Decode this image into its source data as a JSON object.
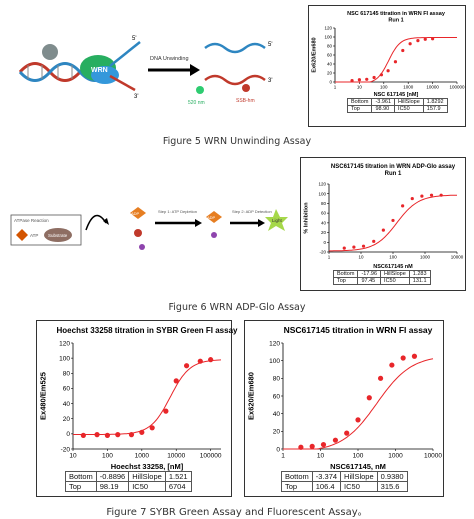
{
  "fig5": {
    "caption": "Figure 5 WRN Unwinding Assay",
    "diagram": {
      "label_wrn": "WRN",
      "label_arrow": "DNA Unwinding",
      "label_520": "520 nm",
      "label_ssb": "SSB-hm",
      "label_5a": "5'",
      "label_3a": "3'",
      "label_5b": "5'",
      "label_3b": "3'",
      "label_3c": "3'"
    },
    "chart_data": {
      "type": "scatter",
      "title": "NSC 617145 titration in WRN FI assay",
      "subtitle": "Run 1",
      "xlabel": "NSC 617145 [nM]",
      "ylabel": "Ex620/Em680",
      "x_ticks": [
        "1",
        "10",
        "100",
        "1000",
        "10000",
        "100000"
      ],
      "y_ticks": [
        "0",
        "20",
        "40",
        "60",
        "80",
        "100",
        "120"
      ],
      "xlim": [
        1,
        100000
      ],
      "ylim": [
        0,
        120
      ],
      "xscale": "log",
      "x": [
        5,
        10,
        20,
        40,
        80,
        150,
        300,
        600,
        1200,
        2500,
        5000,
        10000
      ],
      "y": [
        3,
        5,
        6,
        10,
        16,
        25,
        45,
        70,
        85,
        92,
        95,
        96
      ],
      "fit": {
        "bottom": -3.961,
        "top": 98.9,
        "ic50": 157.9,
        "hill": 1.8292
      },
      "color": "#e8262a"
    },
    "stats": [
      [
        "Bottom",
        "-3.961",
        "HillSlope",
        "1.8292"
      ],
      [
        "Top",
        "98.90",
        "IC50",
        "157.9"
      ]
    ]
  },
  "fig6": {
    "caption": "Figure 6 WRN ADP-Glo Assay",
    "diagram": {
      "label_box": "ATPase Reaction",
      "label_atp": "ATP",
      "label_sub": "Substrate",
      "label_adp1": "ADP",
      "label_step1": "Step 1: ATP Depletion",
      "label_step2": "Step 2: ADP Detection",
      "label_adp2": "ADP",
      "label_light": "Light"
    },
    "chart_data": {
      "type": "scatter",
      "title": "NSC617145 titration in WRN ADP-Glo assay",
      "subtitle": "Run 1",
      "xlabel": "NSC617145 nM",
      "ylabel": "% Inhibition",
      "x_ticks": [
        "1",
        "10",
        "100",
        "1000",
        "10000"
      ],
      "y_ticks": [
        "-20",
        "0",
        "20",
        "40",
        "60",
        "80",
        "100",
        "120"
      ],
      "xlim": [
        1,
        10000
      ],
      "ylim": [
        -20,
        120
      ],
      "xscale": "log",
      "x": [
        3,
        6,
        12,
        25,
        50,
        100,
        200,
        400,
        800,
        1600,
        3200
      ],
      "y": [
        -12,
        -10,
        -8,
        2,
        25,
        45,
        75,
        90,
        95,
        97,
        97
      ],
      "fit": {
        "bottom": -17.96,
        "top": 97.45,
        "ic50": 131.1,
        "hill": 1.283
      },
      "color": "#e8262a"
    },
    "stats": [
      [
        "Bottom",
        "-17.96",
        "HillSlope",
        "1.283"
      ],
      [
        "Top",
        "97.45",
        "IC50",
        "131.1"
      ]
    ]
  },
  "fig7": {
    "caption": "Figure 7 SYBR Green Assay and Fluorescent Assay。",
    "left": {
      "chart_data": {
        "type": "scatter",
        "title": "Hoechst 33258 titration in SYBR Green FI assay",
        "xlabel": "Hoechst 33258, [nM]",
        "ylabel": "Ex480/Em525",
        "x_ticks": [
          "10",
          "100",
          "1000",
          "10000",
          "100000"
        ],
        "y_ticks": [
          "-20",
          "0",
          "20",
          "40",
          "60",
          "80",
          "100",
          "120"
        ],
        "xlim": [
          10,
          200000
        ],
        "ylim": [
          -20,
          120
        ],
        "xscale": "log",
        "x": [
          20,
          50,
          100,
          200,
          500,
          1000,
          2000,
          5000,
          10000,
          20000,
          50000,
          100000
        ],
        "y": [
          -2,
          -1,
          -2,
          -1,
          -1,
          2,
          8,
          30,
          70,
          90,
          96,
          98
        ],
        "fit": {
          "bottom": -0.8896,
          "top": 98.19,
          "ic50": 6704,
          "hill": 1.521
        },
        "color": "#e8262a"
      },
      "stats": [
        [
          "Bottom",
          "-0.8896",
          "HillSlope",
          "1.521"
        ],
        [
          "Top",
          "98.19",
          "IC50",
          "6704"
        ]
      ]
    },
    "right": {
      "chart_data": {
        "type": "scatter",
        "title": "NSC617145 titration in WRN FI assay",
        "xlabel": "NSC617145, nM",
        "ylabel": "Ex620/Em680",
        "x_ticks": [
          "1",
          "10",
          "100",
          "1000",
          "10000"
        ],
        "y_ticks": [
          "0",
          "20",
          "40",
          "60",
          "80",
          "100",
          "120"
        ],
        "xlim": [
          1,
          10000
        ],
        "ylim": [
          0,
          120
        ],
        "xscale": "log",
        "x": [
          3,
          6,
          12,
          25,
          50,
          100,
          200,
          400,
          800,
          1600,
          3200
        ],
        "y": [
          2,
          3,
          5,
          10,
          18,
          33,
          58,
          80,
          95,
          103,
          105
        ],
        "fit": {
          "bottom": -3.374,
          "top": 106.4,
          "ic50": 315.6,
          "hill": 0.938
        },
        "color": "#e8262a"
      },
      "stats": [
        [
          "Bottom",
          "-3.374",
          "HillSlope",
          "0.9380"
        ],
        [
          "Top",
          "106.4",
          "IC50",
          "315.6"
        ]
      ]
    }
  }
}
